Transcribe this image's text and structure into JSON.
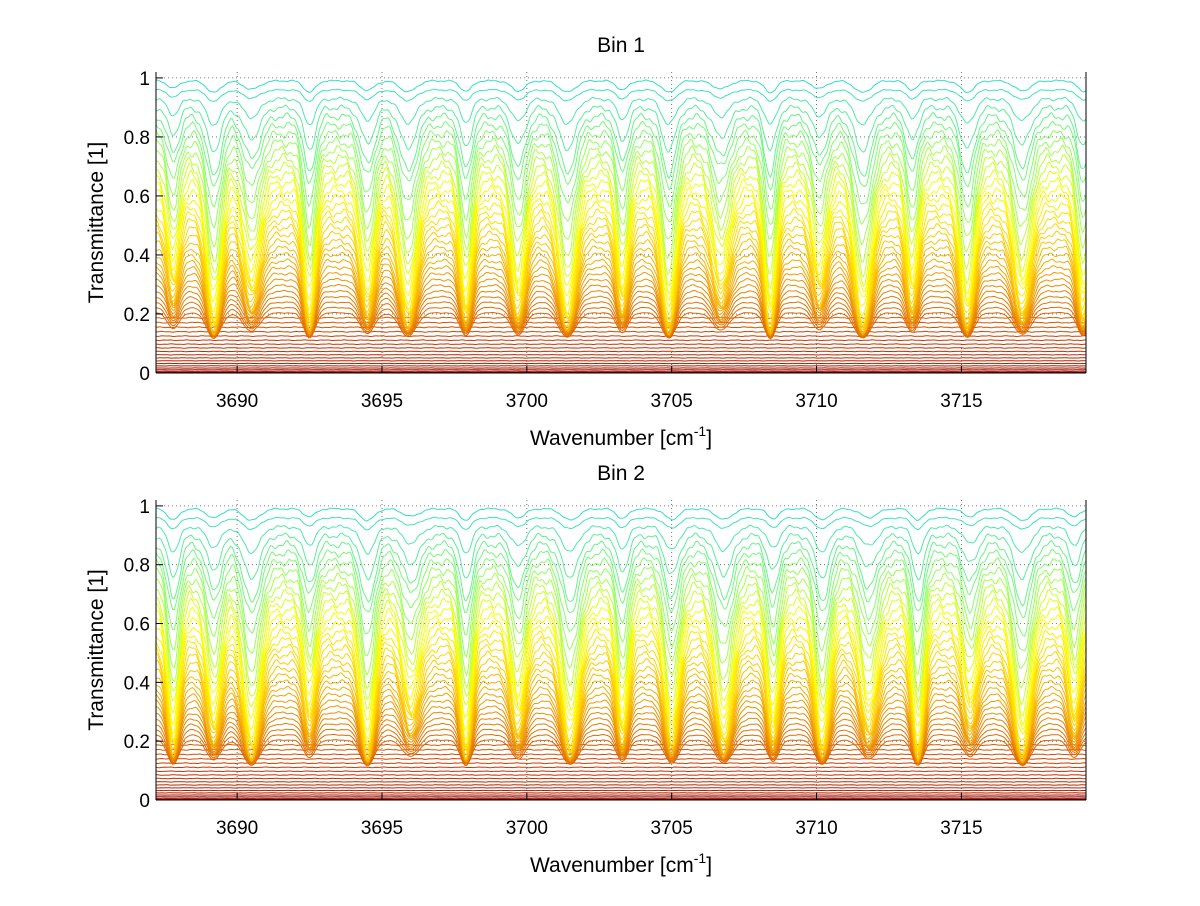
{
  "figure": {
    "background": "#ffffff"
  },
  "chart_data": [
    {
      "type": "line",
      "title": "Bin 1",
      "xlabel": "Wavenumber [cm",
      "xlabel_sup": "-1",
      "xlabel_end": "]",
      "ylabel": "Transmittance [1]",
      "xlim": [
        3687.2,
        3719.3
      ],
      "ylim": [
        0,
        1.02
      ],
      "xticks": [
        3690,
        3695,
        3700,
        3705,
        3710,
        3715
      ],
      "xtick_labels": [
        "3690",
        "3695",
        "3700",
        "3705",
        "3710",
        "3715"
      ],
      "yticks": [
        0,
        0.2,
        0.4,
        0.6,
        0.8,
        1
      ],
      "ytick_labels": [
        "0",
        "0.2",
        "0.4",
        "0.6",
        "0.8",
        "1"
      ],
      "grid": "dotted",
      "legend": "none",
      "absorption_line_centers": [
        3687.8,
        3689.2,
        3690.5,
        3692.5,
        3694.5,
        3695.9,
        3697.9,
        3699.7,
        3701.4,
        3703.3,
        3704.9,
        3706.7,
        3708.4,
        3710.1,
        3711.6,
        3713.3,
        3715.2,
        3717.1,
        3719.2
      ],
      "series_count": 52,
      "series_baseline_min": 0.0,
      "series_baseline_max": 0.99,
      "colormap": [
        "#8b0000",
        "#b22200",
        "#cc3300",
        "#dd6600",
        "#ee9900",
        "#ffcc00",
        "#ffff00",
        "#88ff66",
        "#33ddcc"
      ]
    },
    {
      "type": "line",
      "title": "Bin 2",
      "xlabel": "Wavenumber [cm",
      "xlabel_sup": "-1",
      "xlabel_end": "]",
      "ylabel": "Transmittance [1]",
      "xlim": [
        3687.2,
        3719.3
      ],
      "ylim": [
        0,
        1.02
      ],
      "xticks": [
        3690,
        3695,
        3700,
        3705,
        3710,
        3715
      ],
      "xtick_labels": [
        "3690",
        "3695",
        "3700",
        "3705",
        "3710",
        "3715"
      ],
      "yticks": [
        0,
        0.2,
        0.4,
        0.6,
        0.8,
        1
      ],
      "ytick_labels": [
        "0",
        "0.2",
        "0.4",
        "0.6",
        "0.8",
        "1"
      ],
      "grid": "dotted",
      "legend": "none",
      "absorption_line_centers": [
        3687.8,
        3689.2,
        3690.5,
        3692.5,
        3694.5,
        3696.0,
        3697.9,
        3699.7,
        3701.5,
        3703.3,
        3705.0,
        3706.8,
        3708.5,
        3710.2,
        3711.8,
        3713.5,
        3715.3,
        3717.1,
        3718.9
      ],
      "series_count": 52,
      "series_baseline_min": 0.0,
      "series_baseline_max": 0.99,
      "colormap": [
        "#8b0000",
        "#b22200",
        "#cc3300",
        "#dd6600",
        "#ee9900",
        "#ffcc00",
        "#ffff00",
        "#88ff66",
        "#33ddcc"
      ]
    }
  ]
}
